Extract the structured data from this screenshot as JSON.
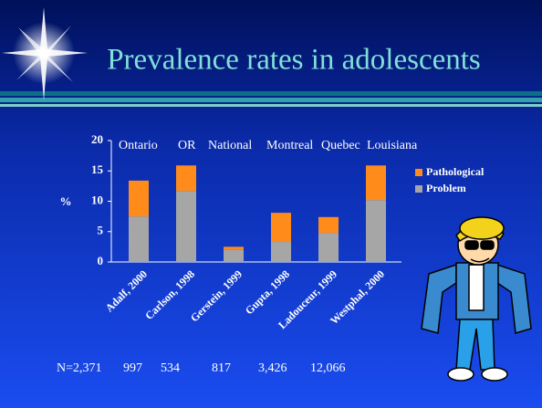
{
  "slide": {
    "title": "Prevalence rates in adolescents",
    "regions": [
      "Ontario",
      "OR",
      "National",
      "Montreal",
      "Quebec",
      "Louisiana"
    ],
    "sample_sizes": [
      "N=2,371",
      "997",
      "534",
      "817",
      "3,426",
      "12,066"
    ]
  },
  "chart_data": {
    "type": "stacked-bar",
    "y_label": "%",
    "categories": [
      "Adalf, 2000",
      "Carlson, 1998",
      "Gerstein, 1999",
      "Gupta, 1998",
      "Ladouceur, 1999",
      "Westphal, 2000"
    ],
    "series": [
      {
        "name": "Problem",
        "color": "#a6a6a6",
        "values": [
          7.5,
          11.7,
          2.0,
          3.3,
          4.8,
          10.2
        ]
      },
      {
        "name": "Pathological",
        "color": "#ff8c1a",
        "values": [
          5.9,
          4.2,
          0.5,
          4.8,
          2.6,
          5.7
        ]
      }
    ],
    "ylim": [
      0,
      20
    ],
    "yticks": [
      0,
      5,
      10,
      15,
      20
    ]
  }
}
